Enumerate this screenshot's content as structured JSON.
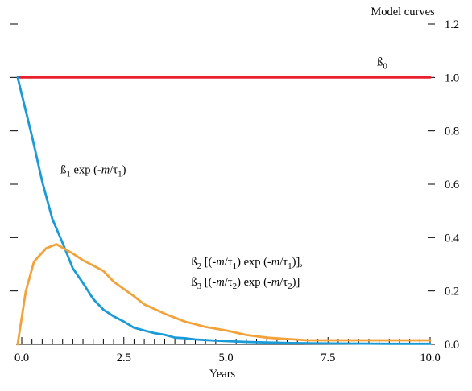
{
  "chart_data": {
    "type": "line",
    "title": "Model curves",
    "xlabel": "Years",
    "ylabel": "",
    "xlim": [
      -0.3,
      10.0
    ],
    "ylim": [
      0.0,
      1.2
    ],
    "x_ticks": [
      0.0,
      2.5,
      5.0,
      7.5,
      10.0
    ],
    "x_tick_labels": [
      "0.0",
      "2.5",
      "5.0",
      "7.5",
      "10.0"
    ],
    "y_ticks": [
      0.0,
      0.2,
      0.4,
      0.6,
      0.8,
      1.0,
      1.2
    ],
    "y_tick_labels": [
      "0.0",
      "0.2",
      "0.4",
      "0.6",
      "0.8",
      "1.0",
      "1.2"
    ],
    "y_axis_side": "right",
    "grid": false,
    "annotations": [
      {
        "series": "beta0",
        "parts": [
          {
            "t": "ß"
          },
          {
            "t": "0",
            "sub": true
          }
        ],
        "x": 8.7,
        "y": 1.045
      },
      {
        "series": "beta1",
        "parts": [
          {
            "t": "ß"
          },
          {
            "t": "1",
            "sub": true
          },
          {
            "t": " exp (-"
          },
          {
            "t": "m",
            "i": true
          },
          {
            "t": "/τ"
          },
          {
            "t": "1",
            "sub": true
          },
          {
            "t": ")"
          }
        ],
        "x": 0.95,
        "y": 0.64
      },
      {
        "series": "beta2",
        "parts": [
          {
            "t": "ß"
          },
          {
            "t": "2",
            "sub": true
          },
          {
            "t": " [(-"
          },
          {
            "t": "m",
            "i": true
          },
          {
            "t": "/τ"
          },
          {
            "t": "1",
            "sub": true
          },
          {
            "t": ") exp (-"
          },
          {
            "t": "m",
            "i": true
          },
          {
            "t": "/τ"
          },
          {
            "t": "1",
            "sub": true
          },
          {
            "t": ")],"
          }
        ],
        "x": 4.15,
        "y": 0.295
      },
      {
        "series": "beta3",
        "parts": [
          {
            "t": "ß"
          },
          {
            "t": "3",
            "sub": true
          },
          {
            "t": " [(-"
          },
          {
            "t": "m",
            "i": true
          },
          {
            "t": "/τ"
          },
          {
            "t": "2",
            "sub": true
          },
          {
            "t": ") exp (-"
          },
          {
            "t": "m",
            "i": true
          },
          {
            "t": "/τ"
          },
          {
            "t": "2",
            "sub": true
          },
          {
            "t": ")]"
          }
        ],
        "x": 4.15,
        "y": 0.22
      }
    ],
    "series": [
      {
        "key": "beta0",
        "color": "#e8202e",
        "x": [
          -0.1,
          10.0
        ],
        "y": [
          1.0,
          1.0
        ]
      },
      {
        "key": "beta1",
        "color": "#1a9ad6",
        "x": [
          -0.1,
          0.25,
          0.5,
          0.75,
          1.0,
          1.25,
          1.5,
          1.75,
          2.0,
          2.25,
          2.5,
          2.75,
          3.0,
          3.25,
          3.5,
          3.75,
          4.0,
          4.25,
          4.5,
          4.75,
          5.0,
          5.5,
          6.0,
          6.5,
          7.0,
          8.0,
          9.0,
          10.0
        ],
        "y": [
          1.0,
          0.78,
          0.61,
          0.47,
          0.38,
          0.285,
          0.23,
          0.17,
          0.13,
          0.105,
          0.085,
          0.062,
          0.052,
          0.042,
          0.036,
          0.025,
          0.023,
          0.018,
          0.016,
          0.014,
          0.012,
          0.009,
          0.007,
          0.005,
          0.004,
          0.003,
          0.002,
          0.002
        ]
      },
      {
        "key": "beta2",
        "color": "#f3a23a",
        "x": [
          -0.1,
          0.1,
          0.3,
          0.6,
          0.85,
          1.25,
          1.5,
          2.0,
          2.25,
          2.75,
          3.0,
          3.5,
          4.0,
          4.5,
          5.0,
          5.5,
          6.0,
          6.5,
          7.0,
          7.5,
          8.0,
          9.0,
          10.0
        ],
        "y": [
          0.0,
          0.2,
          0.31,
          0.36,
          0.375,
          0.34,
          0.315,
          0.275,
          0.235,
          0.18,
          0.15,
          0.115,
          0.085,
          0.065,
          0.052,
          0.035,
          0.025,
          0.02,
          0.015,
          0.015,
          0.015,
          0.015,
          0.015
        ]
      }
    ]
  }
}
